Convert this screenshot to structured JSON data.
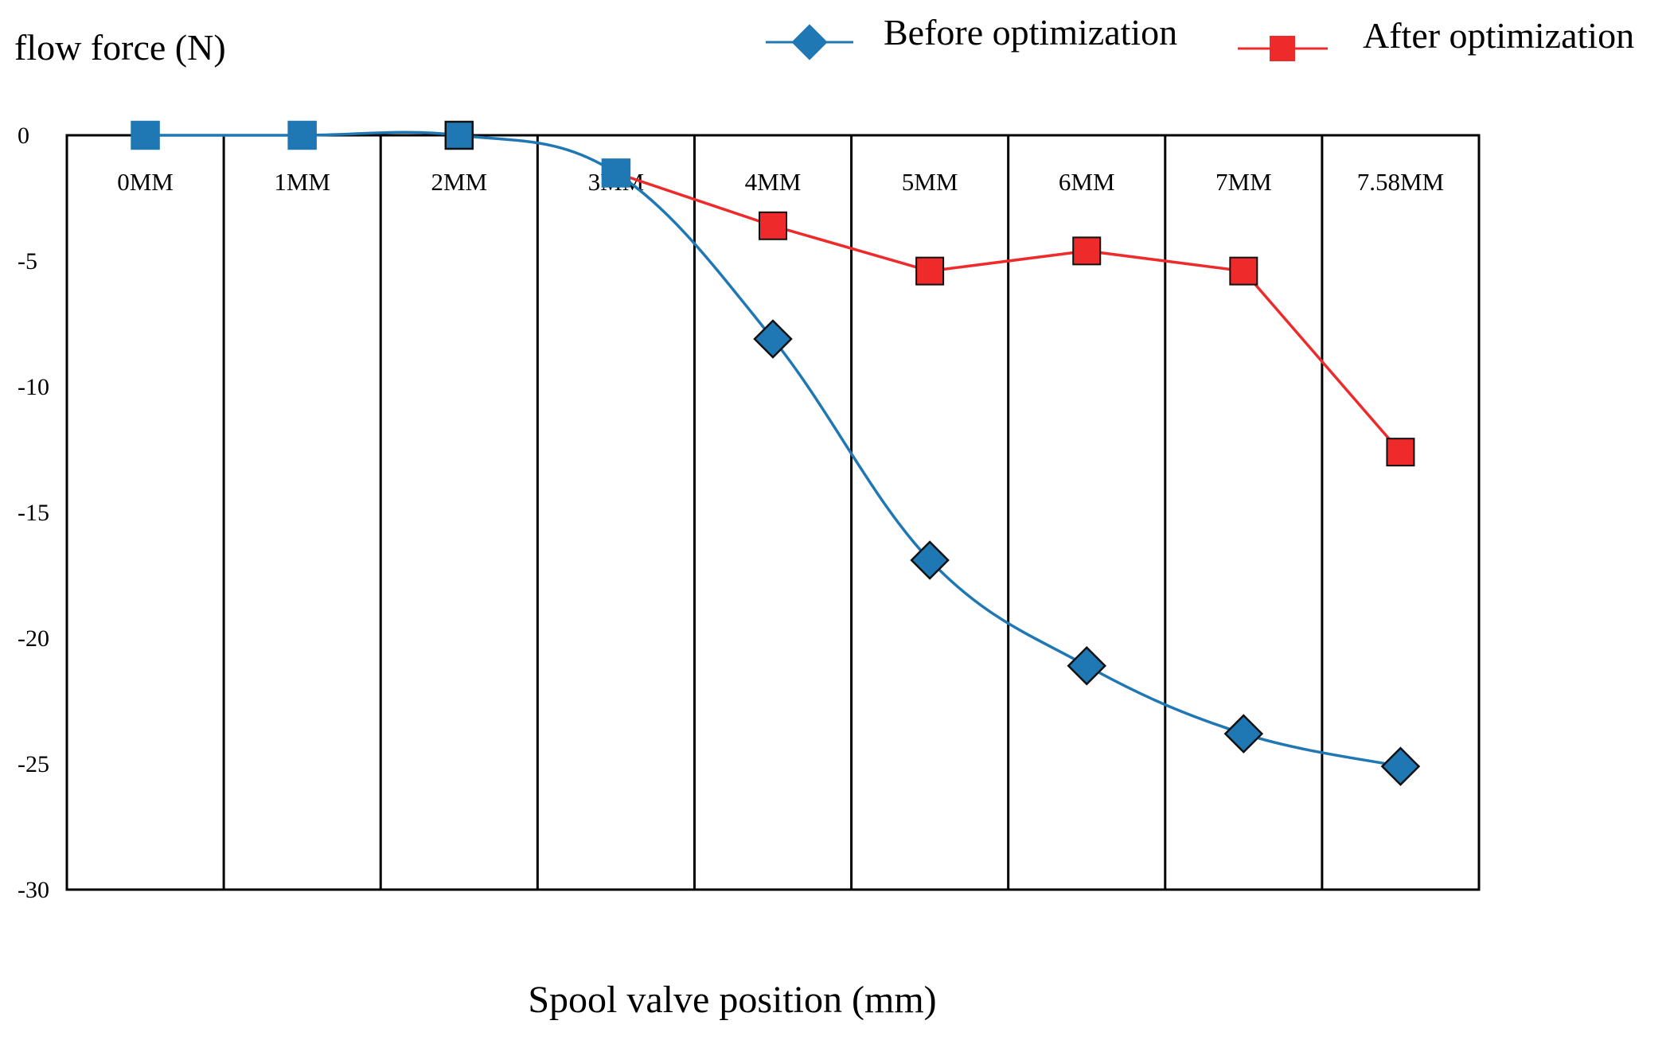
{
  "chart_data": {
    "type": "line",
    "ylabel": "flow force (N)",
    "xlabel": "Spool valve position (mm)",
    "categories": [
      "0MM",
      "1MM",
      "2MM",
      "3MM",
      "4MM",
      "5MM",
      "6MM",
      "7MM",
      "7.58MM"
    ],
    "ylim": [
      -30,
      0
    ],
    "yticks": [
      0,
      -5,
      -10,
      -15,
      -20,
      -25,
      -30
    ],
    "grid": "vertical lines between categories",
    "legend_position": "top-right",
    "series": [
      {
        "name": "Before optimization",
        "marker": "diamond",
        "color": "#1f77b4",
        "values": [
          0,
          0,
          0,
          -1.5,
          -8.1,
          -16.9,
          -21.1,
          -23.8,
          -25.1
        ]
      },
      {
        "name": "After optimization",
        "marker": "square",
        "color": "#ee2a2a",
        "values": [
          0,
          0,
          0,
          -1.5,
          -3.6,
          -5.4,
          -4.6,
          -5.4,
          -12.6
        ]
      }
    ]
  }
}
